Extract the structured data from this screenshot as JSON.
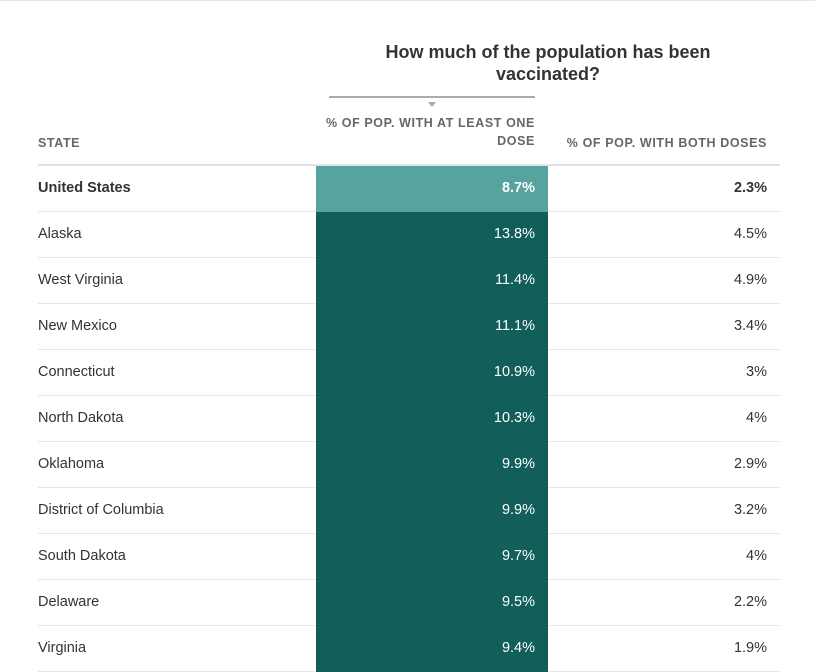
{
  "chart_data": {
    "type": "table",
    "title": "How much of the population has been vaccinated?",
    "sorted_by": "dose1",
    "columns": {
      "state": "STATE",
      "dose1": "% OF POP. WITH AT LEAST ONE DOSE",
      "dose2": "% OF POP. WITH BOTH DOSES"
    },
    "rows": [
      {
        "state": "United States",
        "dose1": "8.7%",
        "dose2": "2.3%"
      },
      {
        "state": "Alaska",
        "dose1": "13.8%",
        "dose2": "4.5%"
      },
      {
        "state": "West Virginia",
        "dose1": "11.4%",
        "dose2": "4.9%"
      },
      {
        "state": "New Mexico",
        "dose1": "11.1%",
        "dose2": "3.4%"
      },
      {
        "state": "Connecticut",
        "dose1": "10.9%",
        "dose2": "3%"
      },
      {
        "state": "North Dakota",
        "dose1": "10.3%",
        "dose2": "4%"
      },
      {
        "state": "Oklahoma",
        "dose1": "9.9%",
        "dose2": "2.9%"
      },
      {
        "state": "District of Columbia",
        "dose1": "9.9%",
        "dose2": "3.2%"
      },
      {
        "state": "South Dakota",
        "dose1": "9.7%",
        "dose2": "4%"
      },
      {
        "state": "Delaware",
        "dose1": "9.5%",
        "dose2": "2.2%"
      },
      {
        "state": "Virginia",
        "dose1": "9.4%",
        "dose2": "1.9%"
      }
    ],
    "colors": {
      "highlight": "#115e5a",
      "highlight_total": "#57a39f"
    }
  }
}
